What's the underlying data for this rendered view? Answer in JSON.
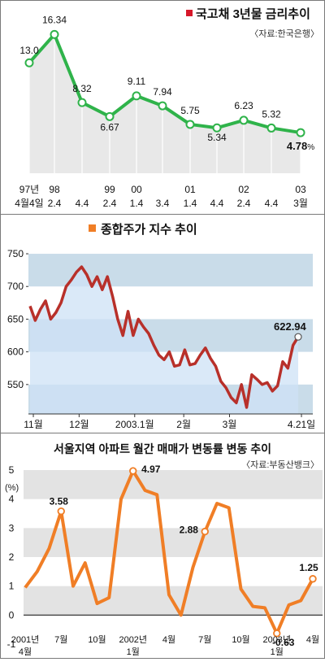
{
  "chart_data": [
    {
      "type": "line",
      "title": "국고채 3년물 금리추이",
      "source": "〈자료:한국은행〉",
      "unit": "%",
      "x_labels": [
        [
          "97년",
          "4월4일"
        ],
        [
          "98",
          "2.4"
        ],
        [
          "",
          "4.4"
        ],
        [
          "99",
          "2.4"
        ],
        [
          "00",
          "1.4"
        ],
        [
          "",
          "3.4"
        ],
        [
          "01",
          "1.4"
        ],
        [
          "",
          "4.4"
        ],
        [
          "02",
          "2.4"
        ],
        [
          "",
          "4.4"
        ],
        [
          "03",
          "3월"
        ]
      ],
      "series": [
        {
          "values": [
            13.0,
            16.34,
            8.32,
            6.67,
            9.11,
            7.94,
            5.75,
            5.34,
            6.23,
            5.32,
            4.78
          ]
        }
      ],
      "value_labels": [
        "13.0",
        "16.34",
        "8.32",
        "6.67",
        "9.11",
        "7.94",
        "5.75",
        "5.34",
        "6.23",
        "5.32",
        "4.78"
      ],
      "ylim": [
        0,
        18
      ],
      "colors": {
        "line": "#2fb34a",
        "marker_fill": "#ffffff",
        "area": "#e8e8e8",
        "title_mark": "#d7182a"
      }
    },
    {
      "type": "line",
      "title": "종합주가 지수 추이",
      "yticks": [
        550,
        600,
        650,
        700,
        750
      ],
      "ylim": [
        505,
        760
      ],
      "x_labels": [
        "11월",
        "12월",
        "2003.1월",
        "2월",
        "3월",
        "4.21일"
      ],
      "x_label_index": [
        1,
        15,
        32,
        47,
        61,
        83
      ],
      "series": [
        {
          "values": [
            670,
            648,
            665,
            678,
            650,
            660,
            675,
            700,
            710,
            722,
            730,
            718,
            700,
            715,
            695,
            715,
            685,
            650,
            625,
            662,
            625,
            650,
            638,
            628,
            610,
            595,
            588,
            600,
            578,
            580,
            603,
            580,
            582,
            595,
            606,
            590,
            578,
            555,
            545,
            530,
            522,
            550,
            515,
            565,
            558,
            550,
            553,
            540,
            548,
            585,
            575,
            610,
            622.94
          ]
        }
      ],
      "end_label": "622.94",
      "colors": {
        "line": "#b8302a",
        "area": "#cde2f6",
        "band": "#c9dce9",
        "title_mark": "#f07e26"
      }
    },
    {
      "type": "line",
      "title": "서울지역 아파트 월간 매매가 변동률 변동 추이",
      "source": "〈자료:부동산뱅크〉",
      "unit": "(%)",
      "yticks": [
        -1,
        0,
        1,
        2,
        3,
        4,
        5
      ],
      "ylim": [
        -1,
        5
      ],
      "x_labels": [
        [
          "2001년",
          "4월"
        ],
        [
          "7월",
          ""
        ],
        [
          "10월",
          ""
        ],
        [
          "2002년",
          "1월"
        ],
        [
          "4월",
          ""
        ],
        [
          "7월",
          ""
        ],
        [
          "10월",
          ""
        ],
        [
          "2003년",
          "1월"
        ],
        [
          "4월",
          ""
        ]
      ],
      "series": [
        {
          "values": [
            0.95,
            1.5,
            2.3,
            3.58,
            1.0,
            1.8,
            0.4,
            0.6,
            4.0,
            4.97,
            4.3,
            4.15,
            0.7,
            0.0,
            1.65,
            2.88,
            3.85,
            3.7,
            0.9,
            0.3,
            0.25,
            -0.63,
            0.35,
            0.5,
            1.25
          ]
        }
      ],
      "value_labels": {
        "3": "3.58",
        "9": "4.97",
        "15": "2.88",
        "21": "-0.63",
        "24": "1.25"
      },
      "colors": {
        "line": "#f07e26",
        "stripe": "#e3e3e3",
        "marker_fill": "#ffffff"
      }
    }
  ]
}
